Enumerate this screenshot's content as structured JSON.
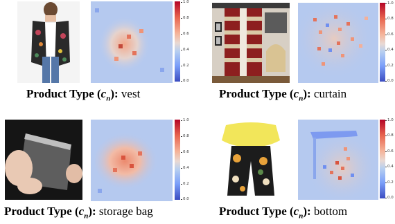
{
  "colorbar": {
    "ticks": [
      "1.0",
      "0.8",
      "0.6",
      "0.4",
      "0.2",
      "0.0"
    ]
  },
  "panels": [
    {
      "caption": {
        "prefix": "Product Type (",
        "var": "c",
        "sub": "n",
        "suffix": "):",
        "value": " vest"
      }
    },
    {
      "caption": {
        "prefix": "Product Type (",
        "var": "c",
        "sub": "n",
        "suffix": "):",
        "value": " curtain"
      }
    },
    {
      "caption": {
        "prefix": "Product Type (",
        "var": "c",
        "sub": "n",
        "suffix": "):",
        "value": " storage bag"
      }
    },
    {
      "caption": {
        "prefix": "Product Type (",
        "var": "c",
        "sub": "n",
        "suffix": "):",
        "value": " bottom"
      }
    }
  ]
}
